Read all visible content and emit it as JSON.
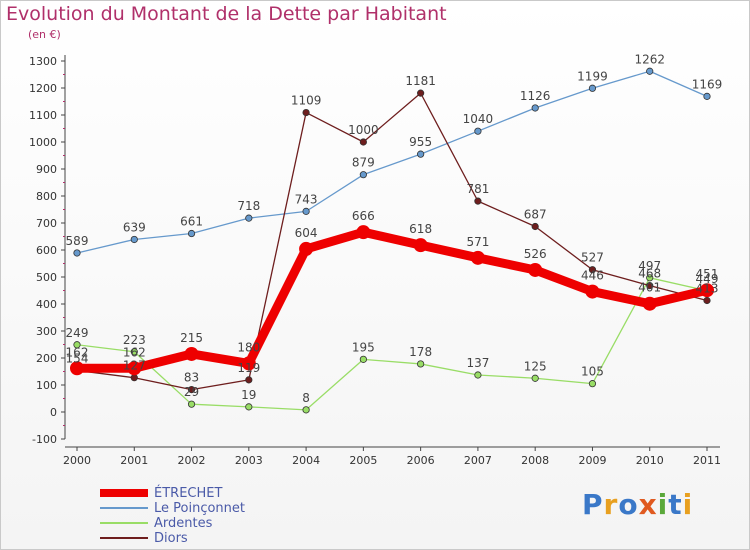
{
  "title": "Evolution du Montant de la Dette par Habitant",
  "subtitle": "(en €)",
  "logo": "Proxiti",
  "chart_data": {
    "type": "line",
    "title": "Evolution du Montant de la Dette par Habitant",
    "subtitle": "(en €)",
    "x": [
      "2000",
      "2001",
      "2002",
      "2003",
      "2004",
      "2005",
      "2006",
      "2007",
      "2008",
      "2009",
      "2010",
      "2011"
    ],
    "ylim": [
      -100,
      1300
    ],
    "yticks": [
      -100,
      0,
      100,
      200,
      300,
      400,
      500,
      600,
      700,
      800,
      900,
      1000,
      1100,
      1200,
      1300
    ],
    "grid": false,
    "legend_position": "bottom-left",
    "series": [
      {
        "name": "ÉTRECHET",
        "color": "#ee0000",
        "values": [
          162,
          162,
          215,
          180,
          604,
          666,
          618,
          571,
          526,
          446,
          401,
          451
        ]
      },
      {
        "name": "Le Poinçonnet",
        "color": "#6699cc",
        "values": [
          589,
          639,
          661,
          718,
          743,
          879,
          955,
          1040,
          1126,
          1199,
          1262,
          1169
        ]
      },
      {
        "name": "Ardentes",
        "color": "#99dd66",
        "values": [
          249,
          223,
          29,
          19,
          8,
          195,
          178,
          137,
          125,
          105,
          497,
          449
        ]
      },
      {
        "name": "Diors",
        "color": "#6e1e1e",
        "values": [
          154,
          127,
          83,
          119,
          1109,
          1000,
          1181,
          781,
          687,
          527,
          468,
          413
        ]
      }
    ]
  }
}
